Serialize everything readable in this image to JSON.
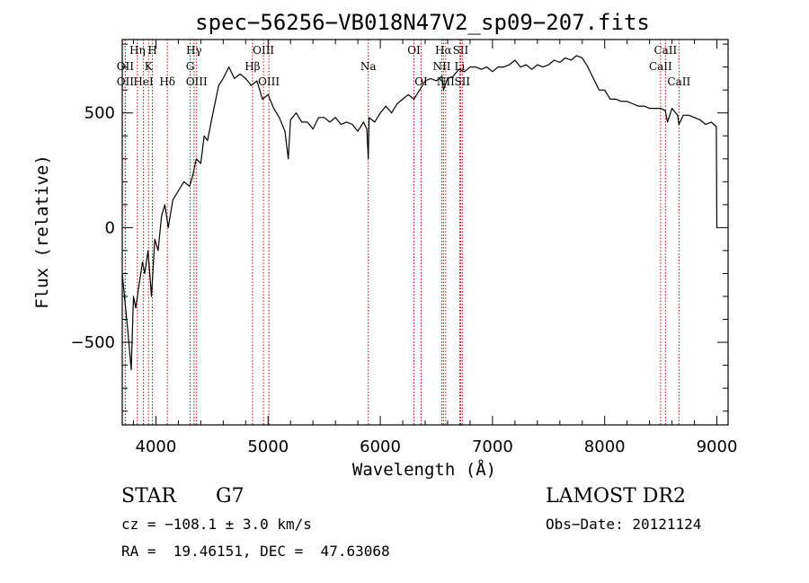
{
  "chart_data": {
    "type": "line",
    "title": "spec−56256−VB018N47V2_sp09−207.fits",
    "xlabel": "Wavelength (Å)",
    "ylabel": "Flux (relative)",
    "xlim": [
      3700,
      9100
    ],
    "ylim": [
      -860,
      820
    ],
    "xticks": [
      4000,
      5000,
      6000,
      7000,
      8000,
      9000
    ],
    "yticks": [
      -500,
      0,
      500
    ],
    "ytick_labels": [
      "−500",
      "0",
      "500"
    ],
    "grid": false,
    "series": [
      {
        "x": [
          3700,
          3750,
          3780,
          3800,
          3820,
          3850,
          3880,
          3900,
          3930,
          3960,
          3990,
          4020,
          4050,
          4080,
          4110,
          4150,
          4200,
          4250,
          4300,
          4330,
          4360,
          4400,
          4430,
          4460,
          4500,
          4530,
          4560,
          4600,
          4650,
          4700,
          4750,
          4800,
          4850,
          4900,
          4950,
          5000,
          5050,
          5100,
          5150,
          5180,
          5200,
          5250,
          5300,
          5350,
          5400,
          5450,
          5500,
          5550,
          5600,
          5650,
          5700,
          5750,
          5800,
          5850,
          5880,
          5893,
          5900,
          5950,
          6000,
          6050,
          6100,
          6150,
          6200,
          6250,
          6300,
          6350,
          6400,
          6450,
          6500,
          6550,
          6563,
          6600,
          6650,
          6700,
          6750,
          6800,
          6850,
          6900,
          6950,
          7000,
          7050,
          7100,
          7150,
          7200,
          7250,
          7300,
          7350,
          7400,
          7450,
          7500,
          7550,
          7600,
          7650,
          7700,
          7750,
          7800,
          7850,
          7900,
          7950,
          8000,
          8050,
          8100,
          8150,
          8200,
          8250,
          8300,
          8350,
          8400,
          8450,
          8500,
          8540,
          8560,
          8600,
          8650,
          8662,
          8700,
          8750,
          8800,
          8850,
          8900,
          8950,
          8995,
          9000,
          9005
        ],
        "values": [
          -200,
          -450,
          -620,
          -300,
          -350,
          -250,
          -150,
          -200,
          -100,
          -300,
          -50,
          -100,
          50,
          100,
          0,
          120,
          160,
          200,
          180,
          230,
          300,
          280,
          400,
          380,
          480,
          550,
          620,
          650,
          700,
          650,
          670,
          650,
          620,
          640,
          560,
          580,
          520,
          480,
          420,
          300,
          470,
          500,
          460,
          460,
          430,
          480,
          480,
          460,
          480,
          450,
          460,
          450,
          420,
          460,
          430,
          300,
          480,
          460,
          500,
          530,
          500,
          540,
          560,
          580,
          560,
          600,
          640,
          650,
          640,
          660,
          600,
          650,
          660,
          690,
          680,
          700,
          700,
          690,
          700,
          680,
          700,
          700,
          710,
          730,
          700,
          710,
          690,
          710,
          700,
          710,
          730,
          720,
          740,
          730,
          750,
          740,
          700,
          650,
          600,
          600,
          560,
          560,
          550,
          550,
          540,
          530,
          530,
          520,
          520,
          520,
          510,
          460,
          520,
          490,
          450,
          490,
          490,
          480,
          470,
          450,
          460,
          440,
          0,
          0
        ]
      }
    ],
    "spectral_lines": [
      {
        "label": "OII",
        "wavelength": 3727,
        "row": 2
      },
      {
        "label": "OII",
        "wavelength": 3727,
        "row": 3
      },
      {
        "label": "Hη",
        "wavelength": 3835,
        "row": 1
      },
      {
        "label": "HeI",
        "wavelength": 3889,
        "row": 3
      },
      {
        "label": "H",
        "wavelength": 3969,
        "row": 1
      },
      {
        "label": "K",
        "wavelength": 3934,
        "row": 2
      },
      {
        "label": "Hδ",
        "wavelength": 4102,
        "row": 3
      },
      {
        "label": "Hγ",
        "wavelength": 4340,
        "row": 1
      },
      {
        "label": "G",
        "wavelength": 4305,
        "row": 2
      },
      {
        "label": "OIII",
        "wavelength": 4363,
        "row": 3
      },
      {
        "label": "OIII",
        "wavelength": 4959,
        "row": 1
      },
      {
        "label": "Hβ",
        "wavelength": 4861,
        "row": 2
      },
      {
        "label": "OIII",
        "wavelength": 5007,
        "row": 3
      },
      {
        "label": "Na",
        "wavelength": 5893,
        "row": 2
      },
      {
        "label": "OI",
        "wavelength": 6300,
        "row": 1
      },
      {
        "label": "OI",
        "wavelength": 6364,
        "row": 3
      },
      {
        "label": "Hα",
        "wavelength": 6563,
        "row": 1
      },
      {
        "label": "SII",
        "wavelength": 6716,
        "row": 1
      },
      {
        "label": "NII",
        "wavelength": 6548,
        "row": 2
      },
      {
        "label": "Li",
        "wavelength": 6708,
        "row": 2
      },
      {
        "label": "NII",
        "wavelength": 6583,
        "row": 3
      },
      {
        "label": "SII",
        "wavelength": 6731,
        "row": 3
      },
      {
        "label": "CaII",
        "wavelength": 8542,
        "row": 1
      },
      {
        "label": "CaII",
        "wavelength": 8498,
        "row": 2
      },
      {
        "label": "CaII",
        "wavelength": 8662,
        "row": 3
      }
    ],
    "line_color": "#000000",
    "marker_line_color": "#cc0000"
  },
  "info": {
    "object_type": "STAR",
    "subclass": "G7",
    "survey": "LAMOST DR2",
    "cz": "cz = −108.1 ± 3.0 km/s",
    "obs_date": "Obs−Date: 20121124",
    "coords": "RA =  19.46151, DEC =  47.63068"
  }
}
